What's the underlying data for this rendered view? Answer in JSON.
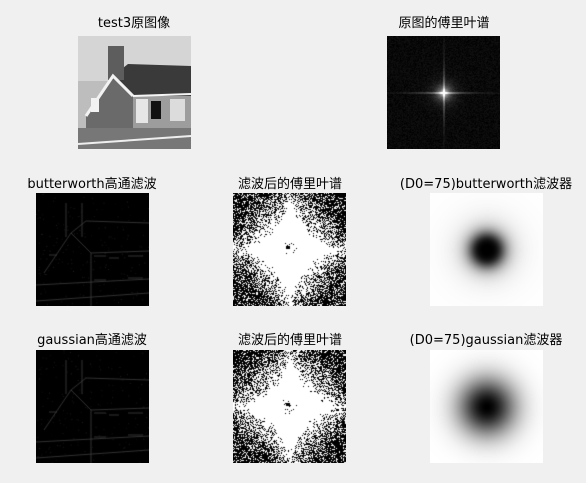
{
  "figure": {
    "row1": {
      "original_title": "test3原图像",
      "spectrum_title": "原图的傅里叶谱"
    },
    "row2": {
      "filtered_title": "butterworth高通滤波",
      "spectrum_title": "滤波后的傅里叶谱",
      "filter_title": "(D0=75)butterworth滤波器"
    },
    "row3": {
      "filtered_title": "gaussian高通滤波",
      "spectrum_title": "滤波后的傅里叶谱",
      "filter_title": "(D0=75)gaussian滤波器"
    }
  },
  "colors": {
    "background": "#f0f0f0",
    "image_black": "#000000",
    "filter_white": "#ffffff"
  }
}
